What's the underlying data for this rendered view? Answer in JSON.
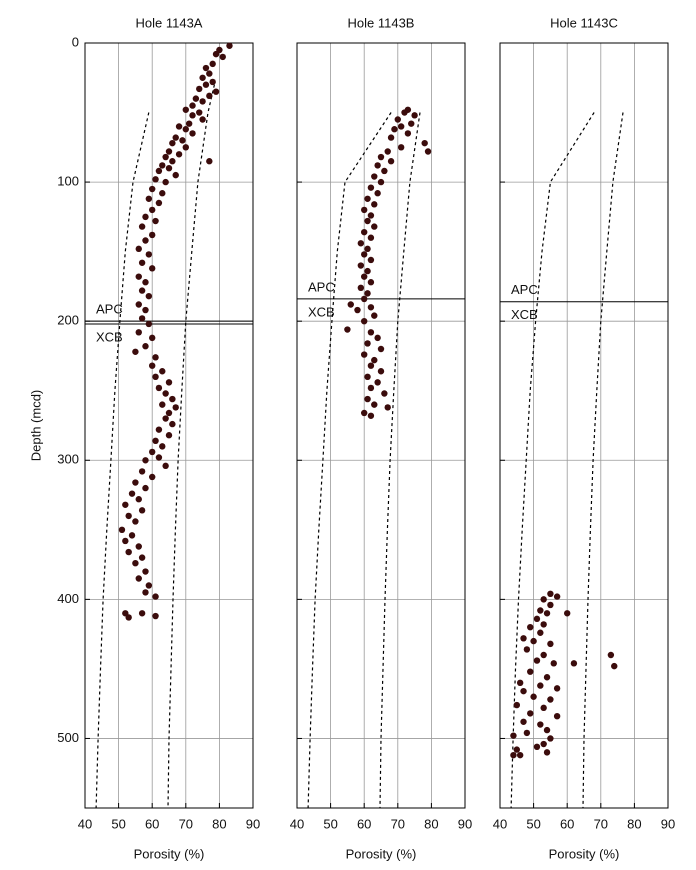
{
  "chart_data": [
    {
      "type": "scatter",
      "title": "Hole 1143A",
      "xlabel": "Porosity (%)",
      "ylabel": "Depth (mcd)",
      "color": "#3b0c0c",
      "xlim": [
        40,
        90
      ],
      "xticks": [
        40,
        50,
        60,
        70,
        80,
        90
      ],
      "ylim": [
        0,
        550
      ],
      "yticks": [
        0,
        100,
        200,
        300,
        400,
        500
      ],
      "y_inverted": true,
      "ytick_labels": true,
      "grid": true,
      "boundaries": [
        200,
        202
      ],
      "annotations": [
        "APC",
        "XCB"
      ],
      "reference_curves": [
        {
          "style": "dashed",
          "x": [
            59,
            54.3,
            52,
            50.4,
            48.9,
            47.7,
            46.5,
            45.4,
            44.6,
            43.9,
            43.3
          ],
          "values": [
            50,
            100,
            150,
            200,
            250,
            300,
            350,
            400,
            450,
            500,
            550
          ]
        },
        {
          "style": "dashed",
          "x": [
            78.5,
            76.6,
            73.6,
            71.8,
            70,
            68.8,
            67.7,
            66.9,
            66.2,
            65.6,
            65,
            64.7
          ],
          "values": [
            30,
            50,
            100,
            150,
            200,
            250,
            300,
            350,
            400,
            450,
            500,
            550
          ]
        }
      ],
      "x": [
        83,
        80,
        79,
        81,
        78,
        76,
        77,
        75,
        78,
        76,
        74,
        79,
        77,
        73,
        75,
        72,
        70,
        74,
        72,
        75,
        71,
        68,
        70,
        72,
        67,
        69,
        66,
        70,
        65,
        68,
        64,
        66,
        77,
        63,
        65,
        62,
        67,
        61,
        64,
        60,
        63,
        59,
        62,
        60,
        58,
        61,
        57,
        60,
        58,
        56,
        59,
        57,
        60,
        56,
        58,
        57,
        59,
        56,
        58,
        57,
        59,
        56,
        60,
        58,
        55,
        61,
        60,
        63,
        61,
        65,
        62,
        64,
        66,
        63,
        67,
        65,
        64,
        66,
        62,
        65,
        61,
        63,
        60,
        62,
        58,
        64,
        57,
        60,
        55,
        58,
        54,
        56,
        52,
        57,
        53,
        55,
        51,
        54,
        52,
        56,
        53,
        57,
        55,
        58,
        56,
        59,
        58,
        61,
        52,
        53,
        57,
        61
      ],
      "values": [
        2,
        5,
        8,
        10,
        15,
        18,
        22,
        25,
        28,
        30,
        33,
        35,
        38,
        40,
        42,
        45,
        48,
        50,
        52,
        55,
        58,
        60,
        62,
        65,
        68,
        70,
        72,
        75,
        78,
        80,
        82,
        85,
        85,
        88,
        90,
        92,
        95,
        98,
        100,
        105,
        108,
        112,
        115,
        120,
        125,
        128,
        132,
        138,
        142,
        148,
        152,
        158,
        162,
        168,
        172,
        178,
        182,
        188,
        192,
        198,
        202,
        208,
        212,
        218,
        222,
        226,
        232,
        236,
        240,
        244,
        248,
        252,
        256,
        260,
        262,
        266,
        270,
        274,
        278,
        282,
        286,
        290,
        294,
        298,
        300,
        304,
        308,
        312,
        316,
        320,
        324,
        328,
        332,
        336,
        340,
        344,
        350,
        354,
        358,
        362,
        366,
        370,
        374,
        380,
        385,
        390,
        395,
        398,
        410,
        413,
        410,
        412
      ]
    },
    {
      "type": "scatter",
      "title": "Hole 1143B",
      "xlabel": "Porosity (%)",
      "color": "#3b0c0c",
      "xlim": [
        40,
        90
      ],
      "xticks": [
        40,
        50,
        60,
        70,
        80,
        90
      ],
      "ylim": [
        0,
        550
      ],
      "yticks": [
        0,
        100,
        200,
        300,
        400,
        500
      ],
      "y_inverted": true,
      "ytick_labels": false,
      "grid": true,
      "boundaries": [
        184
      ],
      "annotations": [
        "APC",
        "XCB"
      ],
      "reference_curves": [
        {
          "style": "dashed",
          "x": [
            68,
            54.3,
            52,
            50.4,
            48.9,
            47.7,
            46.5,
            45.4,
            44.6,
            43.9,
            43.3
          ],
          "values": [
            50,
            100,
            150,
            200,
            250,
            300,
            350,
            400,
            450,
            500,
            550
          ]
        },
        {
          "style": "dashed",
          "x": [
            76.6,
            73.6,
            71.8,
            70,
            68.8,
            67.7,
            66.9,
            66.2,
            65.6,
            65,
            64.7
          ],
          "values": [
            50,
            100,
            150,
            200,
            250,
            300,
            350,
            400,
            450,
            500,
            550
          ]
        }
      ],
      "x": [
        73,
        72,
        75,
        70,
        74,
        71,
        69,
        73,
        68,
        78,
        71,
        67,
        79,
        65,
        68,
        64,
        66,
        63,
        65,
        62,
        64,
        61,
        63,
        60,
        62,
        61,
        63,
        60,
        62,
        59,
        61,
        60,
        62,
        59,
        61,
        60,
        62,
        59,
        61,
        60,
        56,
        62,
        58,
        63,
        60,
        55,
        62,
        64,
        61,
        65,
        60,
        63,
        62,
        65,
        61,
        64,
        62,
        66,
        61,
        63,
        67,
        60,
        62
      ],
      "values": [
        48,
        50,
        52,
        55,
        58,
        60,
        62,
        65,
        68,
        72,
        75,
        78,
        78,
        82,
        85,
        88,
        92,
        96,
        100,
        104,
        108,
        112,
        116,
        120,
        124,
        128,
        132,
        136,
        140,
        144,
        148,
        152,
        156,
        160,
        164,
        168,
        172,
        176,
        180,
        184,
        188,
        190,
        192,
        196,
        200,
        206,
        208,
        212,
        216,
        220,
        224,
        228,
        232,
        236,
        240,
        244,
        248,
        252,
        256,
        260,
        262,
        266,
        268
      ]
    },
    {
      "type": "scatter",
      "title": "Hole 1143C",
      "xlabel": "Porosity (%)",
      "color": "#3b0c0c",
      "xlim": [
        40,
        90
      ],
      "xticks": [
        40,
        50,
        60,
        70,
        80,
        90
      ],
      "ylim": [
        0,
        550
      ],
      "yticks": [
        0,
        100,
        200,
        300,
        400,
        500
      ],
      "y_inverted": true,
      "ytick_labels": false,
      "grid": true,
      "boundaries": [
        186
      ],
      "annotations": [
        "APC",
        "XCB"
      ],
      "reference_curves": [
        {
          "style": "dashed",
          "x": [
            68,
            55,
            52.5,
            50.6,
            49,
            47.8,
            46.6,
            45.5,
            44.6,
            43.9,
            43.3
          ],
          "values": [
            50,
            100,
            150,
            200,
            250,
            300,
            350,
            400,
            450,
            500,
            550
          ]
        },
        {
          "style": "dashed",
          "x": [
            76.6,
            73.6,
            71.8,
            70,
            68.8,
            67.7,
            66.9,
            66.2,
            65.6,
            65,
            64.7
          ],
          "values": [
            50,
            100,
            150,
            200,
            250,
            300,
            350,
            400,
            450,
            500,
            550
          ]
        }
      ],
      "x": [
        55,
        57,
        53,
        55,
        52,
        54,
        60,
        51,
        53,
        49,
        52,
        47,
        50,
        55,
        48,
        53,
        73,
        51,
        56,
        62,
        74,
        49,
        54,
        46,
        52,
        57,
        47,
        50,
        55,
        45,
        53,
        49,
        57,
        47,
        52,
        54,
        48,
        55,
        44,
        53,
        45,
        51,
        44,
        46,
        54
      ],
      "values": [
        396,
        398,
        400,
        404,
        408,
        410,
        410,
        414,
        418,
        420,
        424,
        428,
        430,
        432,
        436,
        440,
        440,
        444,
        446,
        446,
        448,
        452,
        456,
        460,
        462,
        464,
        466,
        470,
        472,
        476,
        478,
        482,
        484,
        488,
        490,
        494,
        496,
        500,
        498,
        504,
        508,
        506,
        512,
        512,
        510
      ]
    }
  ]
}
